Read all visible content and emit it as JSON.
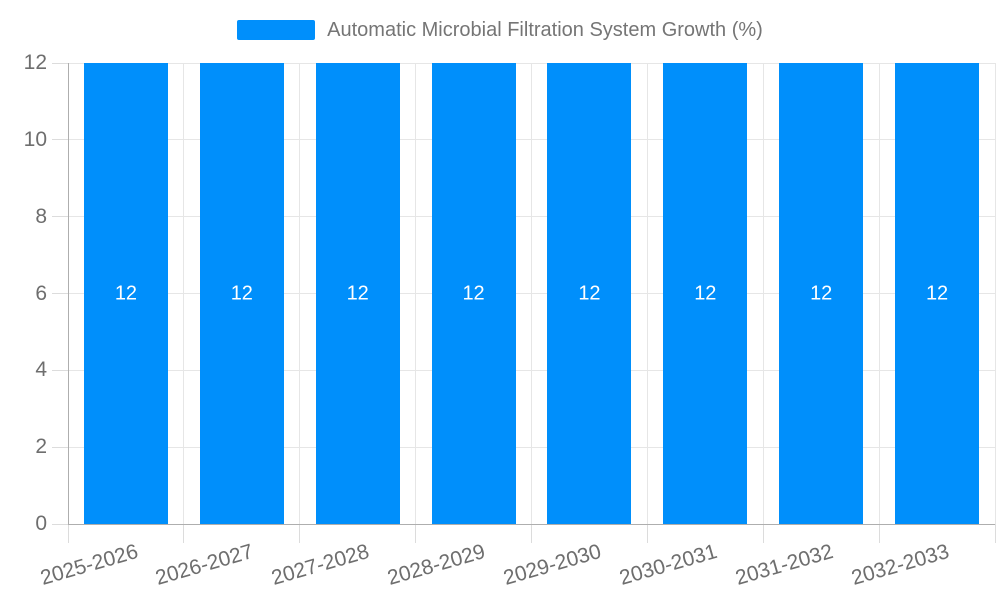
{
  "legend": {
    "label": "Automatic Microbial Filtration System Growth (%)"
  },
  "chart_data": {
    "type": "bar",
    "title": "Automatic Microbial Filtration System Growth (%)",
    "categories": [
      "2025-2026",
      "2026-2027",
      "2027-2028",
      "2028-2029",
      "2029-2030",
      "2030-2031",
      "2031-2032",
      "2032-2033"
    ],
    "values": [
      12,
      12,
      12,
      12,
      12,
      12,
      12,
      12
    ],
    "data_labels": [
      "12",
      "12",
      "12",
      "12",
      "12",
      "12",
      "12",
      "12"
    ],
    "xlabel": "",
    "ylabel": "",
    "ylim": [
      0,
      12
    ],
    "yticks": [
      0,
      2,
      4,
      6,
      8,
      10,
      12
    ],
    "grid": true,
    "legend_position": "top",
    "colors": {
      "bar": "#008FFB",
      "bar_label": "#ffffff",
      "grid": "#e6e6e6",
      "tick": "#dcdcdc",
      "axis": "#aeaeae",
      "axis_label": "#6e6e6e",
      "legend_text": "#757575"
    }
  }
}
